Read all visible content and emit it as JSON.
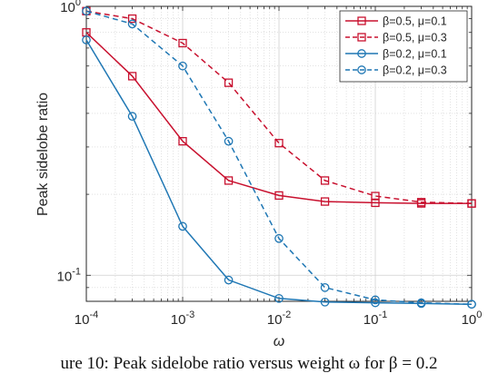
{
  "chart_data": {
    "type": "line",
    "xscale": "log",
    "yscale": "log",
    "xlim": [
      0.0001,
      1
    ],
    "ylim": [
      0.08,
      1
    ],
    "grid": true,
    "legend_position": "top-right",
    "xlabel": "ω",
    "ylabel": "Peak sidelobe ratio",
    "x_ticks": [
      {
        "value": 0.0001,
        "base": "10",
        "exp": "-4"
      },
      {
        "value": 0.001,
        "base": "10",
        "exp": "-3"
      },
      {
        "value": 0.01,
        "base": "10",
        "exp": "-2"
      },
      {
        "value": 0.1,
        "base": "10",
        "exp": "-1"
      },
      {
        "value": 1,
        "base": "10",
        "exp": "0"
      }
    ],
    "y_ticks": [
      {
        "value": 0.1,
        "base": "10",
        "exp": "-1"
      },
      {
        "value": 1,
        "base": "10",
        "exp": "0"
      }
    ],
    "x": [
      0.0001,
      0.0003,
      0.001,
      0.003,
      0.01,
      0.03,
      0.1,
      0.3,
      1
    ],
    "series": [
      {
        "name": "β=0.5, μ=0.1",
        "color": "#c8102e",
        "dash": "solid",
        "marker": "square",
        "values": [
          0.8,
          0.55,
          0.315,
          0.225,
          0.198,
          0.188,
          0.186,
          0.185,
          0.185
        ]
      },
      {
        "name": "β=0.5, μ=0.3",
        "color": "#c8102e",
        "dash": "dashed",
        "marker": "square",
        "values": [
          0.96,
          0.9,
          0.73,
          0.52,
          0.31,
          0.225,
          0.197,
          0.187,
          0.185
        ]
      },
      {
        "name": "β=0.2, μ=0.1",
        "color": "#1f77b4",
        "dash": "solid",
        "marker": "circle",
        "values": [
          0.75,
          0.39,
          0.152,
          0.096,
          0.082,
          0.0795,
          0.079,
          0.0785,
          0.078
        ]
      },
      {
        "name": "β=0.2, μ=0.3",
        "color": "#1f77b4",
        "dash": "dashed",
        "marker": "circle",
        "values": [
          0.96,
          0.86,
          0.6,
          0.315,
          0.137,
          0.09,
          0.081,
          0.079,
          0.078
        ]
      }
    ]
  },
  "caption": "ure 10: Peak sidelobe ratio versus weight ω for β = 0.2"
}
